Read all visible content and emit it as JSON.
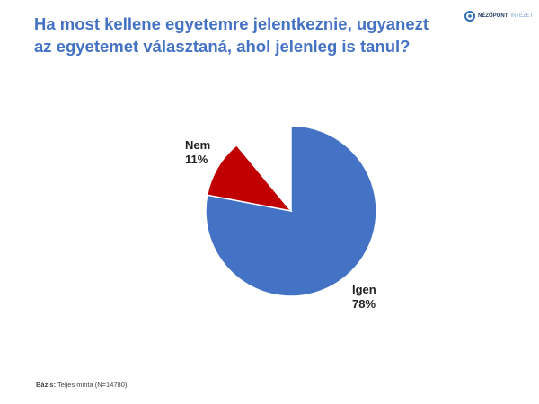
{
  "logo": {
    "text1": "NÉZŐPONT",
    "text2": "INTÉZET"
  },
  "footer": {
    "label": "Bázis:",
    "text": "Teljes minta (N=14780)"
  },
  "chart_data": {
    "type": "pie",
    "title": "Ha most kellene egyetemre jelentkeznie, ugyanezt az egyetemet választaná, ahol jelenleg is tanul?",
    "slices": [
      {
        "label": "Igen",
        "value": 78,
        "value_label": "78%",
        "color": "#4472c4"
      },
      {
        "label": "Nem",
        "value": 11,
        "value_label": "11%",
        "color": "#c00000"
      }
    ],
    "unshown_remainder": 11,
    "start_angle": "12 o'clock",
    "direction": "clockwise"
  }
}
